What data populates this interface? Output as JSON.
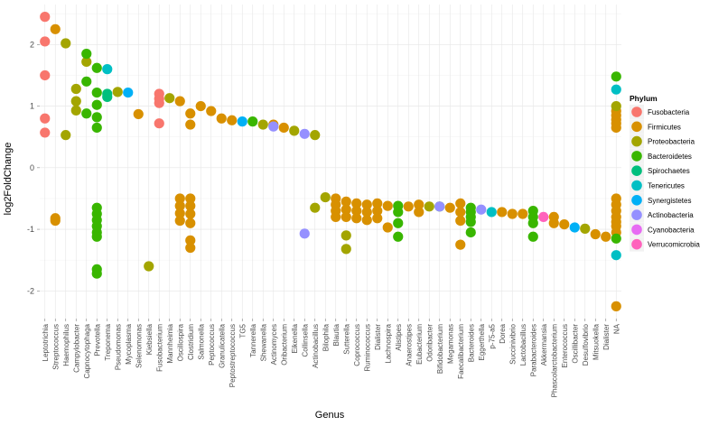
{
  "chart_data": {
    "type": "scatter",
    "xlabel": "Genus",
    "ylabel": "log2FoldChange",
    "ylim": [
      -2.45,
      2.65
    ],
    "yticks": [
      -2,
      -1,
      0,
      1,
      2
    ],
    "grid": true,
    "legend_position": "right",
    "legend_title": "Phylum",
    "phyla": [
      {
        "name": "Fusobacteria",
        "color": "#F8766D"
      },
      {
        "name": "Firmicutes",
        "color": "#D89000"
      },
      {
        "name": "Proteobacteria",
        "color": "#A3A500"
      },
      {
        "name": "Bacteroidetes",
        "color": "#39B600"
      },
      {
        "name": "Spirochaetes",
        "color": "#00BF7D"
      },
      {
        "name": "Tenericutes",
        "color": "#00BFC4"
      },
      {
        "name": "Synergistetes",
        "color": "#00B0F6"
      },
      {
        "name": "Actinobacteria",
        "color": "#9590FF"
      },
      {
        "name": "Cyanobacteria",
        "color": "#E76BF3"
      },
      {
        "name": "Verrucomicrobia",
        "color": "#FF62BC"
      }
    ],
    "categories": [
      "Leptotrichia",
      "Streptococcus",
      "Haemophilus",
      "Campylobacter",
      "Capnocytophaga",
      "Prevotella",
      "Treponema",
      "Pseudomonas",
      "Mycoplasma",
      "Selenomonas",
      "Kiebsiella",
      "Fusobacterium",
      "Mannheimia",
      "Oscillospira",
      "Clostridium",
      "Salmonella",
      "Peptococcus",
      "Granulicatella",
      "Peptostreptococcus",
      "TG5",
      "Tannerella",
      "Shewanella",
      "Actinomyces",
      "Oribacterium",
      "Eikenella",
      "Collinsella",
      "Actinobacillus",
      "Bilophila",
      "Blautia",
      "Sutterella",
      "Coprococcus",
      "Ruminococcus",
      "Dialister",
      "Lachnospira",
      "Alistipes",
      "Anaerostipes",
      "Eubacterium",
      "Odoribacter",
      "Bifidobacterium",
      "Megamonas",
      "Faecalibacterium",
      "Bacteroides",
      "Eggerthella",
      "p-75-a5",
      "Dorea",
      "Succinivibrio",
      "Lactobacillus",
      "Parabacteroides",
      "Akkermansia",
      "Phascolarctobacterium",
      "Enterococcus",
      "Oscillibacter",
      "Desulfovibrio",
      "Mitsuokella",
      "Dialister",
      "NA"
    ],
    "series": [
      {
        "name": "Fusobacteria",
        "points": [
          [
            0,
            2.45
          ],
          [
            0,
            2.05
          ],
          [
            0,
            1.5
          ],
          [
            0,
            0.8
          ],
          [
            0,
            0.57
          ],
          [
            11,
            1.2
          ],
          [
            11,
            1.12
          ],
          [
            11,
            1.05
          ],
          [
            11,
            0.72
          ]
        ]
      },
      {
        "name": "Firmicutes",
        "points": [
          [
            1,
            2.25
          ],
          [
            1,
            -0.82
          ],
          [
            1,
            -0.86
          ],
          [
            9,
            0.87
          ],
          [
            13,
            1.08
          ],
          [
            13,
            -0.5
          ],
          [
            13,
            -0.62
          ],
          [
            13,
            -0.74
          ],
          [
            13,
            -0.86
          ],
          [
            14,
            0.88
          ],
          [
            14,
            0.7
          ],
          [
            14,
            -0.5
          ],
          [
            14,
            -0.62
          ],
          [
            14,
            -0.75
          ],
          [
            14,
            -0.9
          ],
          [
            14,
            -1.18
          ],
          [
            14,
            -1.3
          ],
          [
            15,
            1.0
          ],
          [
            16,
            0.92
          ],
          [
            17,
            0.8
          ],
          [
            18,
            0.77
          ],
          [
            22,
            0.7
          ],
          [
            23,
            0.65
          ],
          [
            28,
            -0.5
          ],
          [
            28,
            -0.6
          ],
          [
            28,
            -0.7
          ],
          [
            28,
            -0.8
          ],
          [
            29,
            -0.55
          ],
          [
            29,
            -0.68
          ],
          [
            29,
            -0.8
          ],
          [
            30,
            -0.58
          ],
          [
            30,
            -0.7
          ],
          [
            30,
            -0.82
          ],
          [
            31,
            -0.6
          ],
          [
            31,
            -0.72
          ],
          [
            31,
            -0.85
          ],
          [
            32,
            -0.58
          ],
          [
            32,
            -0.7
          ],
          [
            32,
            -0.82
          ],
          [
            33,
            -0.62
          ],
          [
            33,
            -0.97
          ],
          [
            35,
            -0.63
          ],
          [
            36,
            -0.6
          ],
          [
            36,
            -0.72
          ],
          [
            39,
            -0.65
          ],
          [
            40,
            -0.58
          ],
          [
            40,
            -0.72
          ],
          [
            40,
            -0.86
          ],
          [
            40,
            -1.25
          ],
          [
            44,
            -0.72
          ],
          [
            45,
            -0.75
          ],
          [
            46,
            -0.75
          ],
          [
            49,
            -0.8
          ],
          [
            49,
            -0.9
          ],
          [
            50,
            -0.92
          ],
          [
            53,
            -1.08
          ],
          [
            54,
            -1.12
          ],
          [
            55,
            0.92
          ],
          [
            55,
            0.85
          ],
          [
            55,
            0.78
          ],
          [
            55,
            0.72
          ],
          [
            55,
            0.65
          ],
          [
            55,
            -0.5
          ],
          [
            55,
            -0.6
          ],
          [
            55,
            -0.7
          ],
          [
            55,
            -0.8
          ],
          [
            55,
            -0.88
          ],
          [
            55,
            -0.95
          ],
          [
            55,
            -1.05
          ],
          [
            55,
            -2.25
          ]
        ]
      },
      {
        "name": "Proteobacteria",
        "points": [
          [
            2,
            2.02
          ],
          [
            2,
            0.53
          ],
          [
            3,
            1.28
          ],
          [
            3,
            1.08
          ],
          [
            3,
            0.93
          ],
          [
            4,
            1.72
          ],
          [
            7,
            1.23
          ],
          [
            10,
            -1.6
          ],
          [
            12,
            1.13
          ],
          [
            21,
            0.7
          ],
          [
            24,
            0.6
          ],
          [
            26,
            0.53
          ],
          [
            26,
            -0.65
          ],
          [
            27,
            -0.48
          ],
          [
            29,
            -1.1
          ],
          [
            29,
            -1.32
          ],
          [
            37,
            -0.63
          ],
          [
            52,
            -0.99
          ],
          [
            55,
            1.0
          ]
        ]
      },
      {
        "name": "Bacteroidetes",
        "points": [
          [
            4,
            1.85
          ],
          [
            4,
            1.4
          ],
          [
            4,
            0.88
          ],
          [
            5,
            1.62
          ],
          [
            5,
            1.22
          ],
          [
            5,
            1.02
          ],
          [
            5,
            0.82
          ],
          [
            5,
            0.65
          ],
          [
            5,
            -0.65
          ],
          [
            5,
            -0.75
          ],
          [
            5,
            -0.85
          ],
          [
            5,
            -0.95
          ],
          [
            5,
            -1.05
          ],
          [
            5,
            -1.12
          ],
          [
            5,
            -1.65
          ],
          [
            5,
            -1.72
          ],
          [
            20,
            0.75
          ],
          [
            34,
            -0.62
          ],
          [
            34,
            -0.72
          ],
          [
            34,
            -0.9
          ],
          [
            34,
            -1.12
          ],
          [
            38,
            -0.63
          ],
          [
            41,
            -0.65
          ],
          [
            41,
            -0.72
          ],
          [
            41,
            -0.8
          ],
          [
            41,
            -0.88
          ],
          [
            41,
            -1.05
          ],
          [
            47,
            -0.7
          ],
          [
            47,
            -0.8
          ],
          [
            47,
            -0.9
          ],
          [
            47,
            -1.12
          ],
          [
            55,
            1.48
          ],
          [
            55,
            -1.15
          ]
        ]
      },
      {
        "name": "Spirochaetes",
        "points": [
          [
            6,
            1.2
          ],
          [
            6,
            1.15
          ]
        ]
      },
      {
        "name": "Tenericutes",
        "points": [
          [
            6,
            1.6
          ],
          [
            43,
            -0.72
          ],
          [
            55,
            1.27
          ],
          [
            55,
            -1.42
          ]
        ]
      },
      {
        "name": "Synergistetes",
        "points": [
          [
            8,
            1.22
          ],
          [
            19,
            0.75
          ],
          [
            51,
            -0.97
          ]
        ]
      },
      {
        "name": "Actinobacteria",
        "points": [
          [
            22,
            0.67
          ],
          [
            25,
            0.55
          ],
          [
            25,
            -1.07
          ],
          [
            38,
            -0.63
          ],
          [
            42,
            -0.68
          ]
        ]
      },
      {
        "name": "Cyanobacteria",
        "points": []
      },
      {
        "name": "Verrucomicrobia",
        "points": [
          [
            48,
            -0.8
          ]
        ]
      }
    ]
  }
}
